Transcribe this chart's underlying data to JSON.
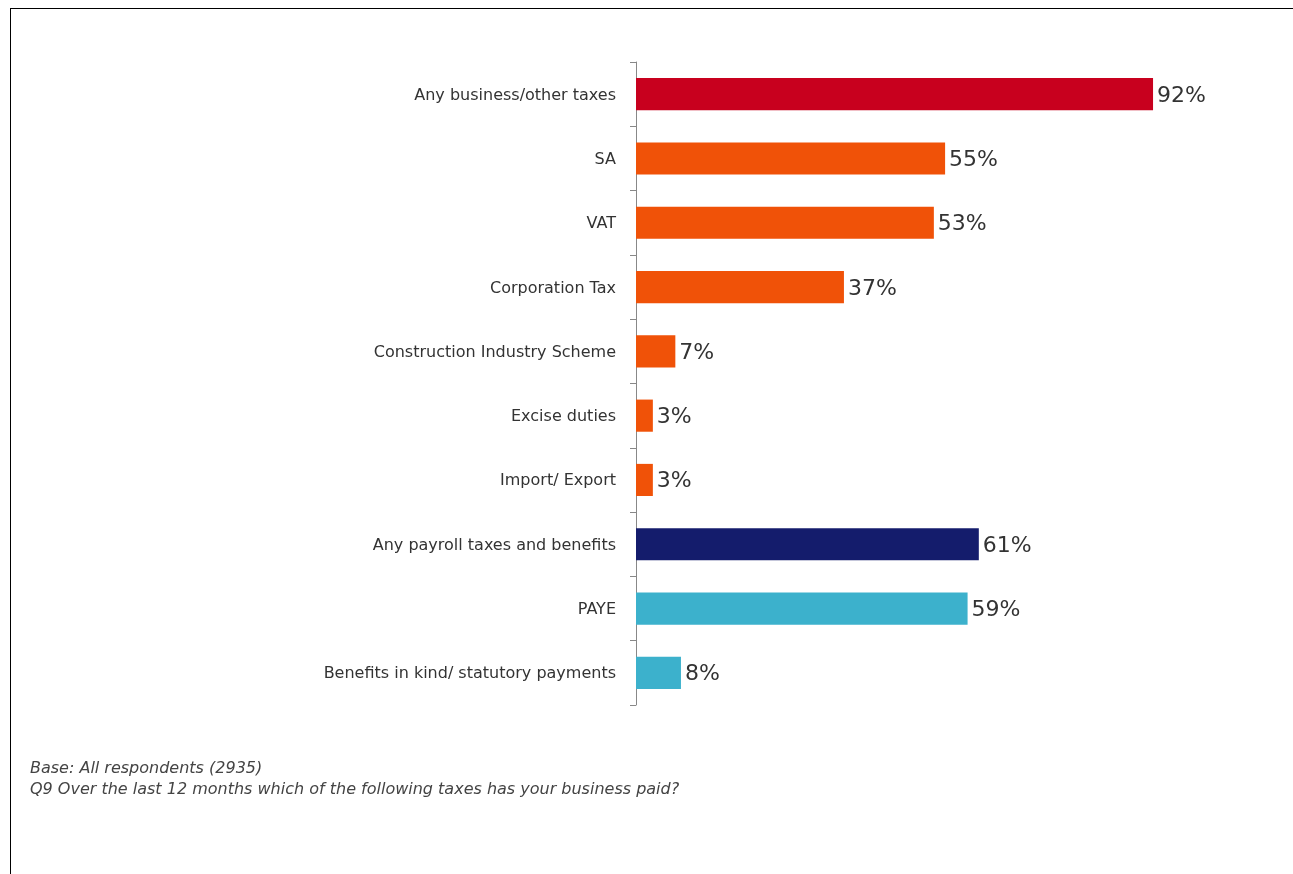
{
  "chart_data": {
    "type": "bar",
    "orientation": "horizontal",
    "categories": [
      "Any business/other taxes",
      "SA",
      "VAT",
      "Corporation Tax",
      "Construction Industry Scheme",
      "Excise duties",
      "Import/ Export",
      "Any payroll taxes and benefits",
      "PAYE",
      "Benefits in kind/ statutory payments"
    ],
    "values": [
      92,
      55,
      53,
      37,
      7,
      3,
      3,
      61,
      59,
      8
    ],
    "colors": [
      "#c8001e",
      "#f05208",
      "#f05208",
      "#f05208",
      "#f05208",
      "#f05208",
      "#f05208",
      "#141c6c",
      "#3cb1cc",
      "#3cb1cc"
    ],
    "value_labels": [
      "92%",
      "55%",
      "53%",
      "37%",
      "7%",
      "3%",
      "3%",
      "61%",
      "59%",
      "8%"
    ],
    "annotations": [
      "Base: All respondents (2935)",
      "Q9 Over the last 12 months which of the following taxes has your business paid?"
    ]
  }
}
